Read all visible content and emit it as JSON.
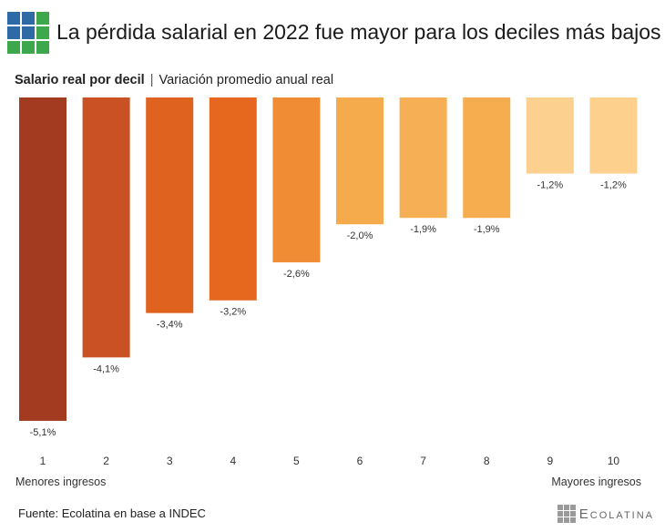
{
  "title": "La pérdida salarial en 2022 fue mayor para los deciles más bajos",
  "subtitle_bold": "Salario real por decil",
  "subtitle_sep": "|",
  "subtitle_rest": "Variación promedio anual real",
  "chart_data": {
    "type": "bar",
    "categories": [
      "1",
      "2",
      "3",
      "4",
      "5",
      "6",
      "7",
      "8",
      "9",
      "10"
    ],
    "values": [
      -5.1,
      -4.1,
      -3.4,
      -3.2,
      -2.6,
      -2.0,
      -1.9,
      -1.9,
      -1.2,
      -1.2
    ],
    "data_labels": [
      "-5,1%",
      "-4,1%",
      "-3,4%",
      "-3,2%",
      "-2,6%",
      "-2,0%",
      "-1,9%",
      "-1,9%",
      "-1,2%",
      "-1,2%"
    ],
    "colors": [
      "#a33b21",
      "#c95124",
      "#e0621f",
      "#e6681e",
      "#f08c33",
      "#f5aa4c",
      "#f6af54",
      "#f6ad50",
      "#fcd08f",
      "#fdd08e"
    ],
    "ylim": [
      -5.3,
      0
    ],
    "grid": false,
    "legend": "none"
  },
  "x_extremes": {
    "left": "Menores ingresos",
    "right": "Mayores ingresos"
  },
  "source": "Fuente: Ecolatina en base a INDEC",
  "brand": "Ecolatina",
  "logo_colors": {
    "blue": "#2e6aa6",
    "green": "#3ca84b"
  }
}
